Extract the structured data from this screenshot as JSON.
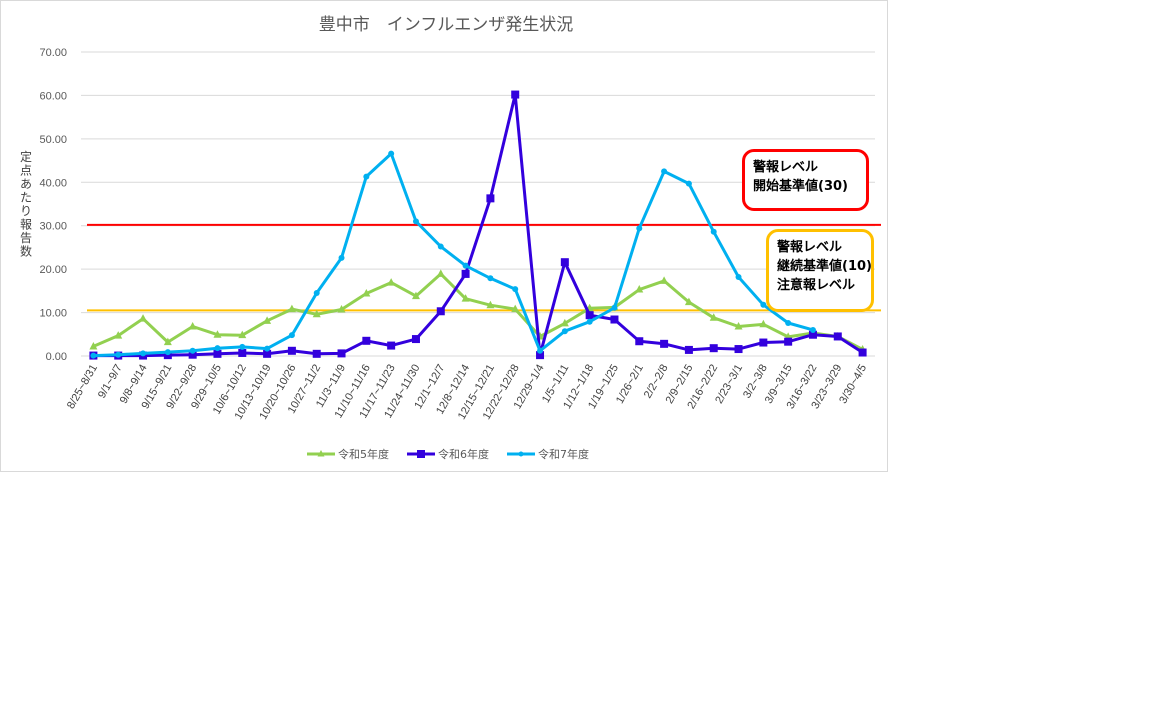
{
  "chart_data": {
    "type": "line",
    "title": "豊中市　インフルエンザ発生状況",
    "xlabel": "",
    "ylabel": "定点あたり報告数",
    "ylim": [
      0,
      70
    ],
    "yticks": [
      "0.00",
      "10.00",
      "20.00",
      "30.00",
      "40.00",
      "50.00",
      "60.00",
      "70.00"
    ],
    "grid": true,
    "legend_position": "bottom",
    "categories": [
      "8/25~8/31",
      "9/1~9/7",
      "9/8~9/14",
      "9/15~9/21",
      "9/22~9/28",
      "9/29~10/5",
      "10/6~10/12",
      "10/13~10/19",
      "10/20~10/26",
      "10/27~11/2",
      "11/3~11/9",
      "11/10~11/16",
      "11/17~11/23",
      "11/24~11/30",
      "12/1~12/7",
      "12/8~12/14",
      "12/15~12/21",
      "12/22~12/28",
      "12/29~1/4",
      "1/5~1/11",
      "1/12~1/18",
      "1/19~1/25",
      "1/26~2/1",
      "2/2~2/8",
      "2/9~2/15",
      "2/16~2/22",
      "2/23~3/1",
      "3/2~3/8",
      "3/9~3/15",
      "3/16~3/22",
      "3/23~3/29",
      "3/30~4/5"
    ],
    "series": [
      {
        "name": "令和5年度",
        "color": "#92d050",
        "marker": "triangle",
        "values": [
          2.2,
          4.7,
          8.6,
          3.2,
          6.8,
          4.9,
          4.8,
          8.1,
          10.8,
          9.6,
          10.7,
          14.4,
          16.9,
          13.8,
          18.9,
          13.2,
          11.7,
          10.8,
          4.5,
          7.5,
          11.0,
          11.2,
          15.3,
          17.3,
          12.4,
          8.8,
          6.8,
          7.3,
          4.4,
          5.3,
          4.5,
          1.5
        ]
      },
      {
        "name": "令和6年度",
        "color": "#3300dd",
        "marker": "square",
        "values": [
          0.1,
          0.1,
          0.1,
          0.2,
          0.3,
          0.5,
          0.7,
          0.5,
          1.2,
          0.5,
          0.6,
          3.5,
          2.4,
          3.9,
          10.3,
          18.9,
          36.3,
          60.2,
          0.2,
          21.6,
          9.4,
          8.4,
          3.4,
          2.8,
          1.4,
          1.8,
          1.6,
          3.1,
          3.3,
          4.9,
          4.5,
          0.8
        ]
      },
      {
        "name": "令和7年度",
        "color": "#00b0f0",
        "marker": "circle",
        "values": [
          0.1,
          0.3,
          0.6,
          0.9,
          1.2,
          1.8,
          2.1,
          1.7,
          4.8,
          14.5,
          22.6,
          41.3,
          46.6,
          31.0,
          25.2,
          20.8,
          17.9,
          15.4,
          1.2,
          5.7,
          7.9,
          11.1,
          29.4,
          42.5,
          39.7,
          28.6,
          18.2,
          11.8,
          7.6,
          6.0,
          null,
          null
        ]
      }
    ],
    "reference_lines": [
      {
        "name": "警報レベル開始基準値",
        "value": 30.2,
        "color": "#ff0000"
      },
      {
        "name": "警報レベル継続基準値・注意報レベル",
        "value": 10.5,
        "color": "#ffc000"
      }
    ],
    "annotations": [
      {
        "lines": [
          "警報レベル",
          "開始基準値(30)"
        ],
        "border_color": "#ff0000"
      },
      {
        "lines": [
          "警報レベル",
          "継続基準値(10)",
          "注意報レベル"
        ],
        "border_color": "#ffc000"
      }
    ]
  },
  "callouts": {
    "alert_start": {
      "line1": "警報レベル",
      "line2": "開始基準値(30)"
    },
    "alert_continue": {
      "line1": "警報レベル",
      "line2": "継続基準値(10)",
      "line3": "注意報レベル"
    }
  }
}
